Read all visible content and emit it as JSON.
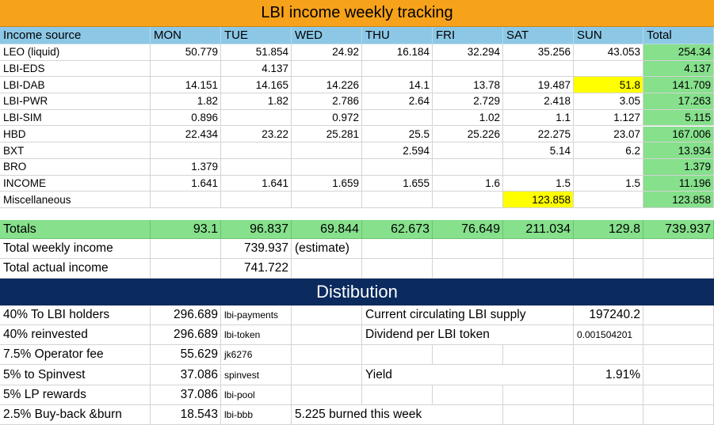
{
  "title": "LBI income weekly tracking",
  "columns": [
    "Income source",
    "MON",
    "TUE",
    "WED",
    "THU",
    "FRI",
    "SAT",
    "SUN",
    "Total"
  ],
  "rows": [
    {
      "source": "LEO (liquid)",
      "values": [
        "50.779",
        "51.854",
        "24.92",
        "16.184",
        "32.294",
        "35.256",
        "43.053"
      ],
      "total": "254.34"
    },
    {
      "source": "LBI-EDS",
      "values": [
        "",
        "4.137",
        "",
        "",
        "",
        "",
        ""
      ],
      "total": "4.137"
    },
    {
      "source": "LBI-DAB",
      "values": [
        "14.151",
        "14.165",
        "14.226",
        "14.1",
        "13.78",
        "19.487",
        "51.8"
      ],
      "total": "141.709"
    },
    {
      "source": "LBI-PWR",
      "values": [
        "1.82",
        "1.82",
        "2.786",
        "2.64",
        "2.729",
        "2.418",
        "3.05"
      ],
      "total": "17.263"
    },
    {
      "source": "LBI-SIM",
      "values": [
        "0.896",
        "",
        "0.972",
        "",
        "1.02",
        "1.1",
        "1.127"
      ],
      "total": "5.115"
    },
    {
      "source": "HBD",
      "values": [
        "22.434",
        "23.22",
        "25.281",
        "25.5",
        "25.226",
        "22.275",
        "23.07"
      ],
      "total": "167.006"
    },
    {
      "source": "BXT",
      "values": [
        "",
        "",
        "",
        "2.594",
        "",
        "5.14",
        "6.2"
      ],
      "total": "13.934"
    },
    {
      "source": "BRO",
      "values": [
        "1.379",
        "",
        "",
        "",
        "",
        "",
        ""
      ],
      "total": "1.379"
    },
    {
      "source": "INCOME",
      "values": [
        "1.641",
        "1.641",
        "1.659",
        "1.655",
        "1.6",
        "1.5",
        "1.5"
      ],
      "total": "11.196"
    },
    {
      "source": "Miscellaneous",
      "values": [
        "",
        "",
        "",
        "",
        "",
        "123.858",
        ""
      ],
      "total": "123.858"
    }
  ],
  "totals": {
    "label": "Totals",
    "values": [
      "93.1",
      "96.837",
      "69.844",
      "62.673",
      "76.649",
      "211.034",
      "129.8"
    ],
    "total": "739.937"
  },
  "summary": {
    "weekly_label": "Total weekly income",
    "weekly_value": "739.937",
    "weekly_note": "(estimate)",
    "actual_label": "Total actual income",
    "actual_value": "741.722"
  },
  "distribution": {
    "title": "Distibution",
    "rows": [
      {
        "label": "40% To LBI holders",
        "amount": "296.689",
        "account": "lbi-payments"
      },
      {
        "label": "40% reinvested",
        "amount": "296.689",
        "account": "lbi-token"
      },
      {
        "label": "7.5% Operator fee",
        "amount": "55.629",
        "account": "jk6276"
      },
      {
        "label": "5% to Spinvest",
        "amount": "37.086",
        "account": "spinvest"
      },
      {
        "label": "5% LP rewards",
        "amount": "37.086",
        "account": "lbi-pool"
      },
      {
        "label": "2.5% Buy-back &burn",
        "amount": "18.543",
        "account": "lbi-bbb"
      }
    ],
    "supply_label": "Current circulating LBI supply",
    "supply_value": "197240.2",
    "dividend_label": "Dividend per LBI token",
    "dividend_value": "0.001504201",
    "yield_label": "Yield",
    "yield_value": "1.91%",
    "burned_note": "5.225 burned this week"
  },
  "colors": {
    "title_bg": "#f7a21b",
    "header_bg": "#8cc7e6",
    "total_bg": "#86e08c",
    "highlight": "#ffff00",
    "dist_bg": "#0b2a5e"
  }
}
